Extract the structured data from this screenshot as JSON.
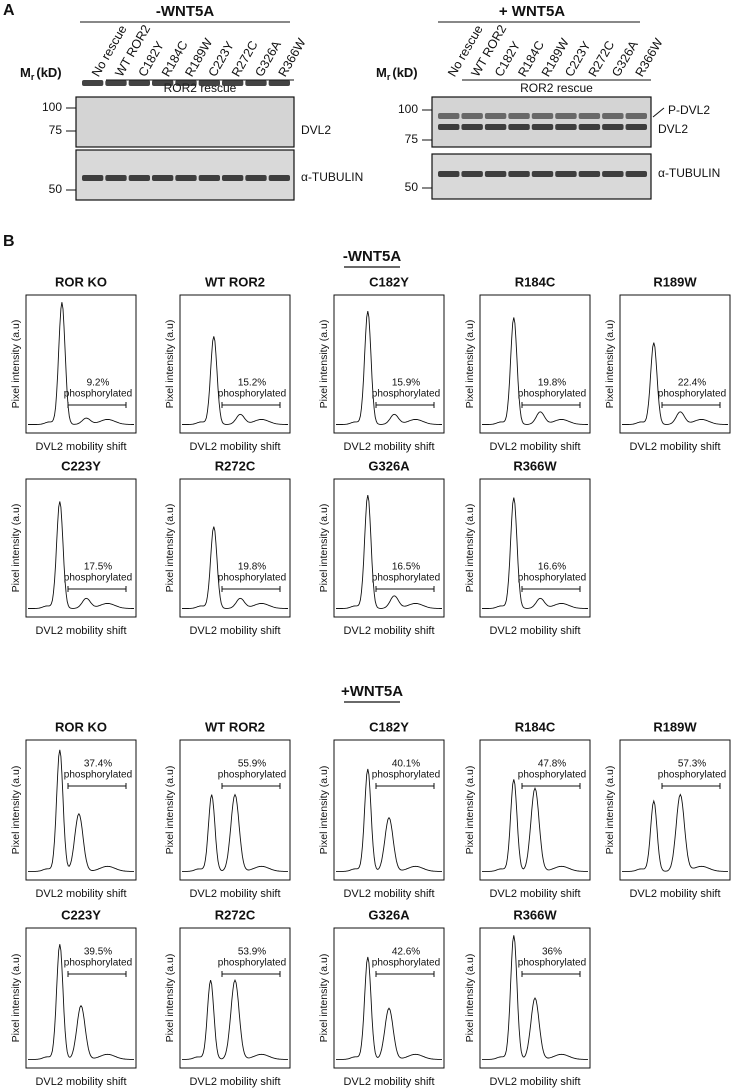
{
  "panel_a": {
    "label": "A",
    "blots": [
      {
        "condition": "-WNT5A",
        "mr": "M",
        "mr_sub": "r",
        "mr_unit": "(kD)",
        "lanes": [
          "No rescue",
          "WT ROR2",
          "C182Y",
          "R184C",
          "R189W",
          "C223Y",
          "R272C",
          "G326A",
          "R366W"
        ],
        "rescue_label": "ROR2 rescue",
        "markers_top": [
          "100",
          "75"
        ],
        "markers_bottom": [
          "50"
        ],
        "bands_top": [
          "DVL2"
        ],
        "bands_bottom": [
          "α-TUBULIN"
        ]
      },
      {
        "condition": "+ WNT5A",
        "mr": "M",
        "mr_sub": "r",
        "mr_unit": "(kD)",
        "lanes": [
          "No rescue",
          "WT ROR2",
          "C182Y",
          "R184C",
          "R189W",
          "C223Y",
          "R272C",
          "G326A",
          "R366W"
        ],
        "rescue_label": "ROR2 rescue",
        "markers_top": [
          "100",
          "75"
        ],
        "markers_bottom": [
          "50"
        ],
        "bands_top": [
          "P-DVL2",
          "DVL2"
        ],
        "bands_bottom": [
          "α-TUBULIN"
        ]
      }
    ]
  },
  "panel_b": {
    "label": "B",
    "y_label": "Pixel intensity (a.u)",
    "x_label": "DVL2 mobility shift",
    "note": "phosphorylated",
    "sections": [
      {
        "title": "-WNT5A",
        "plots": [
          {
            "title": "ROR KO",
            "percent": "9.2%"
          },
          {
            "title": "WT ROR2",
            "percent": "15.2%"
          },
          {
            "title": "C182Y",
            "percent": "15.9%"
          },
          {
            "title": "R184C",
            "percent": "19.8%"
          },
          {
            "title": "R189W",
            "percent": "22.4%"
          },
          {
            "title": "C223Y",
            "percent": "17.5%"
          },
          {
            "title": "R272C",
            "percent": "19.8%"
          },
          {
            "title": "G326A",
            "percent": "16.5%"
          },
          {
            "title": "R366W",
            "percent": "16.6%"
          }
        ]
      },
      {
        "title": "+WNT5A",
        "plots": [
          {
            "title": "ROR KO",
            "percent": "37.4%"
          },
          {
            "title": "WT ROR2",
            "percent": "55.9%"
          },
          {
            "title": "C182Y",
            "percent": "40.1%"
          },
          {
            "title": "R184C",
            "percent": "47.8%"
          },
          {
            "title": "R189W",
            "percent": "57.3%"
          },
          {
            "title": "C223Y",
            "percent": "39.5%"
          },
          {
            "title": "R272C",
            "percent": "53.9%"
          },
          {
            "title": "G326A",
            "percent": "42.6%"
          },
          {
            "title": "R366W",
            "percent": "36%"
          }
        ]
      }
    ]
  }
}
